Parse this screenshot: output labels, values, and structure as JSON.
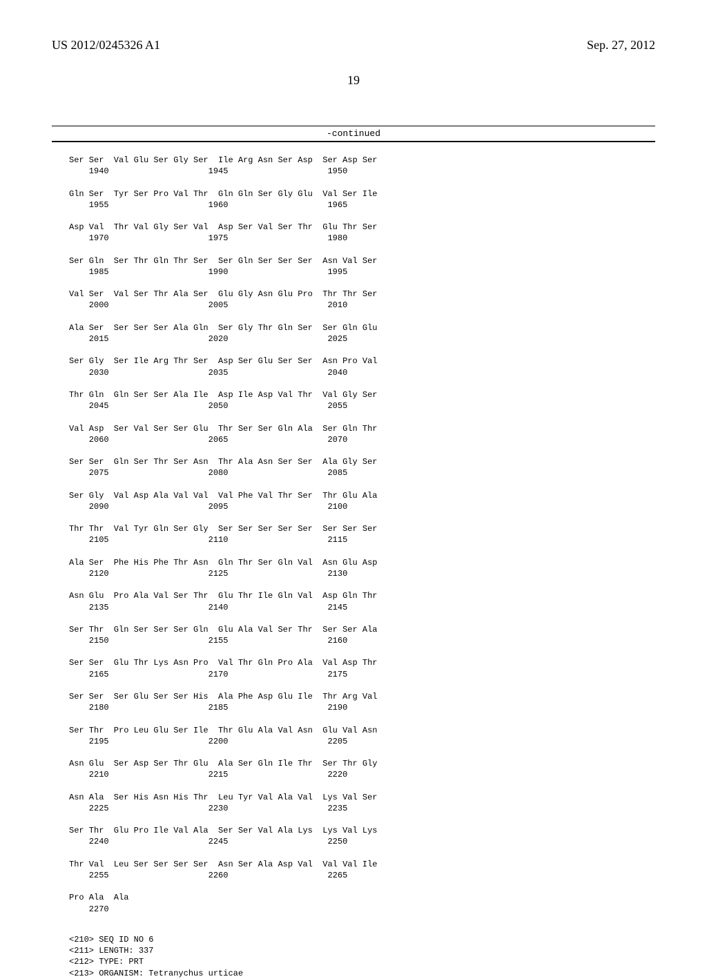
{
  "header": {
    "doc_number": "US 2012/0245326 A1",
    "pub_date": "Sep. 27, 2012"
  },
  "page_number": "19",
  "continued_label": "-continued",
  "sequence_rows": [
    {
      "aa": "Ser Ser  Val Glu Ser Gly Ser  Ile Arg Asn Ser Asp  Ser Asp Ser",
      "nums": "    1940                    1945                    1950"
    },
    {
      "aa": "Gln Ser  Tyr Ser Pro Val Thr  Gln Gln Ser Gly Glu  Val Ser Ile",
      "nums": "    1955                    1960                    1965"
    },
    {
      "aa": "Asp Val  Thr Val Gly Ser Val  Asp Ser Val Ser Thr  Glu Thr Ser",
      "nums": "    1970                    1975                    1980"
    },
    {
      "aa": "Ser Gln  Ser Thr Gln Thr Ser  Ser Gln Ser Ser Ser  Asn Val Ser",
      "nums": "    1985                    1990                    1995"
    },
    {
      "aa": "Val Ser  Val Ser Thr Ala Ser  Glu Gly Asn Glu Pro  Thr Thr Ser",
      "nums": "    2000                    2005                    2010"
    },
    {
      "aa": "Ala Ser  Ser Ser Ser Ala Gln  Ser Gly Thr Gln Ser  Ser Gln Glu",
      "nums": "    2015                    2020                    2025"
    },
    {
      "aa": "Ser Gly  Ser Ile Arg Thr Ser  Asp Ser Glu Ser Ser  Asn Pro Val",
      "nums": "    2030                    2035                    2040"
    },
    {
      "aa": "Thr Gln  Gln Ser Ser Ala Ile  Asp Ile Asp Val Thr  Val Gly Ser",
      "nums": "    2045                    2050                    2055"
    },
    {
      "aa": "Val Asp  Ser Val Ser Ser Glu  Thr Ser Ser Gln Ala  Ser Gln Thr",
      "nums": "    2060                    2065                    2070"
    },
    {
      "aa": "Ser Ser  Gln Ser Thr Ser Asn  Thr Ala Asn Ser Ser  Ala Gly Ser",
      "nums": "    2075                    2080                    2085"
    },
    {
      "aa": "Ser Gly  Val Asp Ala Val Val  Val Phe Val Thr Ser  Thr Glu Ala",
      "nums": "    2090                    2095                    2100"
    },
    {
      "aa": "Thr Thr  Val Tyr Gln Ser Gly  Ser Ser Ser Ser Ser  Ser Ser Ser",
      "nums": "    2105                    2110                    2115"
    },
    {
      "aa": "Ala Ser  Phe His Phe Thr Asn  Gln Thr Ser Gln Val  Asn Glu Asp",
      "nums": "    2120                    2125                    2130"
    },
    {
      "aa": "Asn Glu  Pro Ala Val Ser Thr  Glu Thr Ile Gln Val  Asp Gln Thr",
      "nums": "    2135                    2140                    2145"
    },
    {
      "aa": "Ser Thr  Gln Ser Ser Ser Gln  Glu Ala Val Ser Thr  Ser Ser Ala",
      "nums": "    2150                    2155                    2160"
    },
    {
      "aa": "Ser Ser  Glu Thr Lys Asn Pro  Val Thr Gln Pro Ala  Val Asp Thr",
      "nums": "    2165                    2170                    2175"
    },
    {
      "aa": "Ser Ser  Ser Glu Ser Ser His  Ala Phe Asp Glu Ile  Thr Arg Val",
      "nums": "    2180                    2185                    2190"
    },
    {
      "aa": "Ser Thr  Pro Leu Glu Ser Ile  Thr Glu Ala Val Asn  Glu Val Asn",
      "nums": "    2195                    2200                    2205"
    },
    {
      "aa": "Asn Glu  Ser Asp Ser Thr Glu  Ala Ser Gln Ile Thr  Ser Thr Gly",
      "nums": "    2210                    2215                    2220"
    },
    {
      "aa": "Asn Ala  Ser His Asn His Thr  Leu Tyr Val Ala Val  Lys Val Ser",
      "nums": "    2225                    2230                    2235"
    },
    {
      "aa": "Ser Thr  Glu Pro Ile Val Ala  Ser Ser Val Ala Lys  Lys Val Lys",
      "nums": "    2240                    2245                    2250"
    },
    {
      "aa": "Thr Val  Leu Ser Ser Ser Ser  Asn Ser Ala Asp Val  Val Val Ile",
      "nums": "    2255                    2260                    2265"
    },
    {
      "aa": "Pro Ala  Ala",
      "nums": "    2270"
    }
  ],
  "seq_meta": [
    "<210> SEQ ID NO 6",
    "<211> LENGTH: 337",
    "<212> TYPE: PRT",
    "<213> ORGANISM: Tetranychus urticae"
  ]
}
